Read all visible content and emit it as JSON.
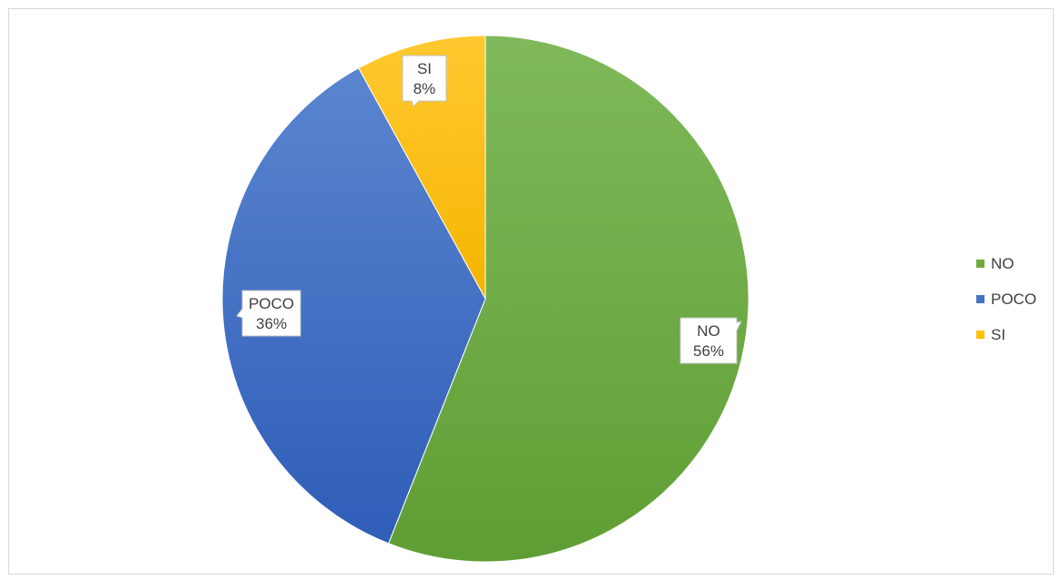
{
  "chart_data": {
    "type": "pie",
    "title": "",
    "categories": [
      "NO",
      "POCO",
      "SI"
    ],
    "values": [
      56,
      36,
      8
    ],
    "data_labels": [
      "56%",
      "36%",
      "8%"
    ],
    "colors": [
      "#6faa3f",
      "#4472c4",
      "#ffc000"
    ],
    "start": "12 o'clock, clockwise",
    "legend_position": "right"
  }
}
